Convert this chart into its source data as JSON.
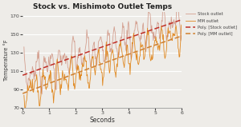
{
  "title": "Stock vs. Mishimoto Outlet Temps",
  "xlabel": "Seconds",
  "ylabel": "Temperature °F",
  "xlim": [
    0,
    6
  ],
  "ylim": [
    70,
    175
  ],
  "yticks": [
    70,
    90,
    110,
    130,
    150,
    170
  ],
  "xticks": [
    0,
    1,
    2,
    3,
    4,
    5,
    6
  ],
  "bg_color": "#eeece8",
  "stock_color": "#d4a090",
  "mm_color": "#e08820",
  "poly_stock_color": "#c03028",
  "poly_mm_color": "#d08030",
  "legend_labels": [
    "Stock outlet",
    "MM outlet",
    "Poly. [Stock outlet]",
    "Poly. [MM outlet]"
  ],
  "figsize": [
    3.0,
    1.59
  ],
  "dpi": 100
}
